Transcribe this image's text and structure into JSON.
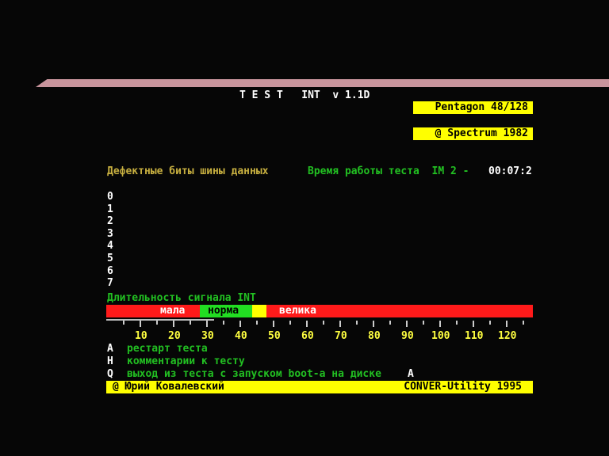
{
  "title": "T E S T   INT  v 1.1D",
  "badges": {
    "machine": "Pentagon 48/128",
    "copyright": "@ Spectrum  1982"
  },
  "status": {
    "left": "Дефектные биты шины данных",
    "middle": "Время работы теста  IM 2 -",
    "time": "00:07:2"
  },
  "bits": [
    "0",
    "1",
    "2",
    "3",
    "4",
    "5",
    "6",
    "7"
  ],
  "signal": {
    "label": "Длительность сигнала INT",
    "low": "мала",
    "normal": "норма",
    "high": "велика"
  },
  "scale": [
    "10",
    "20",
    "30",
    "40",
    "50",
    "60",
    "70",
    "80",
    "90",
    "100",
    "110",
    "120"
  ],
  "menu": [
    {
      "key": "A",
      "label": "рестарт теста"
    },
    {
      "key": "H",
      "label": "комментарии к тесту"
    },
    {
      "key": "Q",
      "label": "выход из теста с запуском boot-а на диске",
      "extra": "A"
    }
  ],
  "footer": {
    "author": "@ Юрий Ковалевский",
    "product": "CONVER-Utility  1995"
  },
  "colors": {
    "red": "#ff1a1a",
    "green": "#22dd22",
    "yellow": "#ffff00"
  }
}
